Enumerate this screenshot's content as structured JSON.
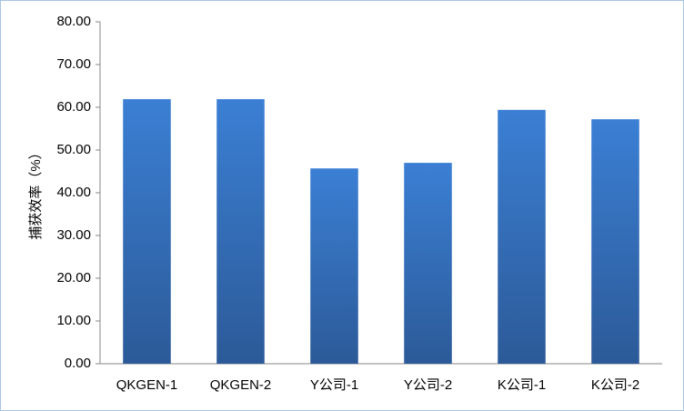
{
  "chart_data": {
    "type": "bar",
    "y_label": "捕获效率（%）",
    "categories": [
      "QKGEN-1",
      "QKGEN-2",
      "Y公司-1",
      "Y公司-2",
      "K公司-1",
      "K公司-2"
    ],
    "values": [
      61.9,
      61.9,
      45.7,
      47.0,
      59.4,
      57.2
    ],
    "color": "#3b7fd4",
    "ylim": [
      0,
      80
    ],
    "yticks": [
      {
        "value": 0,
        "label": "0.00"
      },
      {
        "value": 10,
        "label": "10.00"
      },
      {
        "value": 20,
        "label": "20.00"
      },
      {
        "value": 30,
        "label": "30.00"
      },
      {
        "value": 40,
        "label": "40.00"
      },
      {
        "value": 50,
        "label": "50.00"
      },
      {
        "value": 60,
        "label": "60.00"
      },
      {
        "value": 70,
        "label": "70.00"
      },
      {
        "value": 80,
        "label": "80.00"
      }
    ],
    "grid": false
  }
}
